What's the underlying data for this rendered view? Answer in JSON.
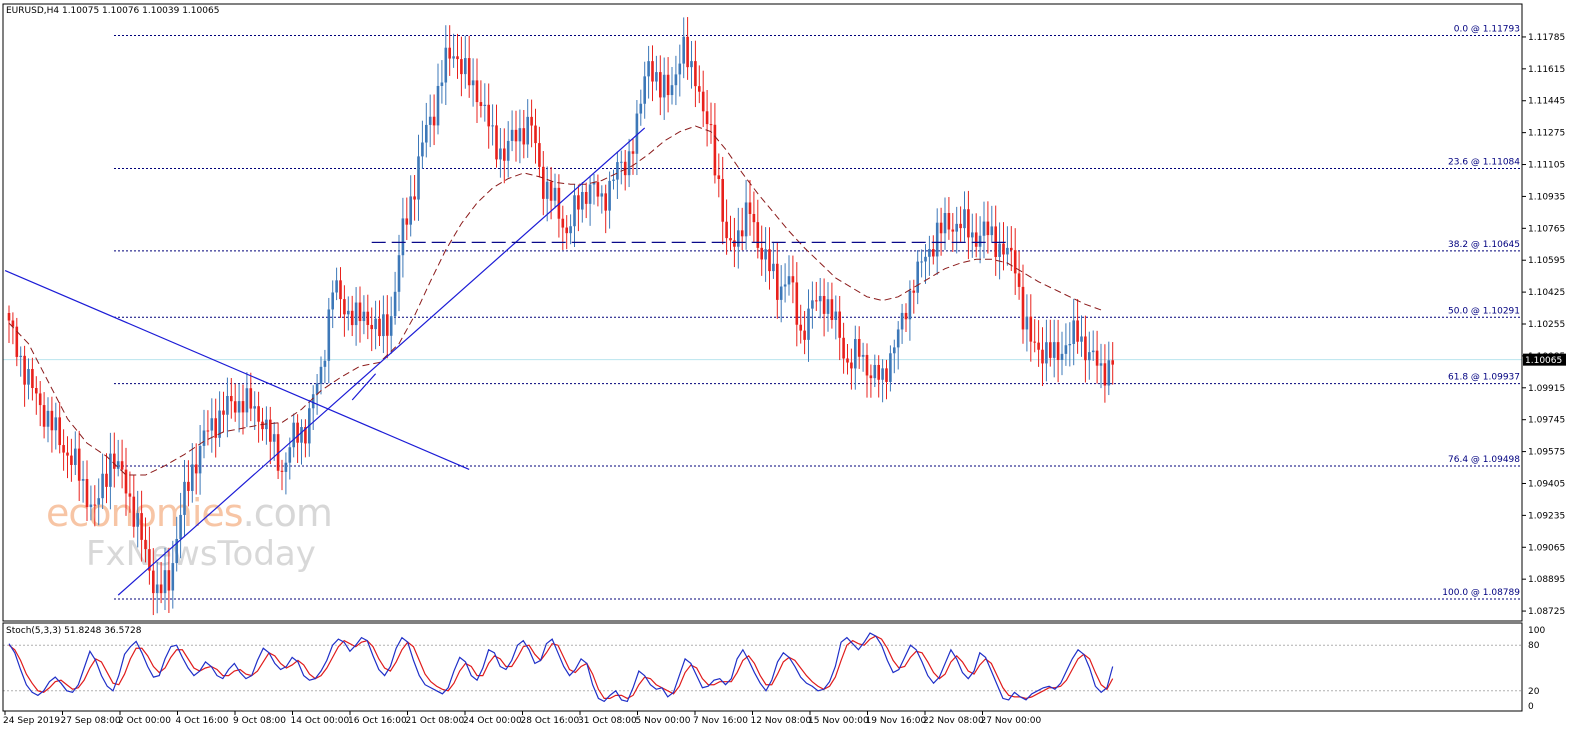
{
  "header": {
    "symbol_info": "EURUSD,H4  1.10075 1.10076 1.10039 1.10065",
    "stoch_info": "Stoch(5,3,3) 51.8248 36.5728"
  },
  "watermark": {
    "part1": "economies",
    "part2": ".com",
    "line2": "FxNewsToday"
  },
  "colors": {
    "bull": "#3d78b8",
    "bear": "#e8211c",
    "ma": "#8b1a1a",
    "fib": "#00007a",
    "trend": "#1c1cd6",
    "stoch_main": "#2030c8",
    "stoch_signal": "#e01c1c",
    "price_line": "#b9e4ee"
  },
  "chart_data": [
    {
      "type": "candlestick",
      "title": "EURUSD,H4",
      "ylim": [
        1.0872,
        1.1187
      ],
      "grid": false,
      "price_ticks": [
        "1.11785",
        "1.11615",
        "1.11445",
        "1.11275",
        "1.11105",
        "1.10935",
        "1.10765",
        "1.10595",
        "1.10425",
        "1.10255",
        "1.10085",
        "1.09915",
        "1.09745",
        "1.09575",
        "1.09405",
        "1.09235",
        "1.09065",
        "1.08895",
        "1.08725"
      ],
      "x_labels": [
        "24 Sep 2019",
        "27 Sep 08:00",
        "2 Oct 00:00",
        "4 Oct 16:00",
        "9 Oct 08:00",
        "14 Oct 00:00",
        "16 Oct 16:00",
        "21 Oct 08:00",
        "24 Oct 00:00",
        "28 Oct 16:00",
        "31 Oct 08:00",
        "5 Nov 00:00",
        "7 Nov 16:00",
        "12 Nov 08:00",
        "15 Nov 00:00",
        "19 Nov 16:00",
        "22 Nov 08:00",
        "27 Nov 00:00"
      ],
      "current_price": "1.10065",
      "fib_levels": [
        {
          "label": "0.0 @ 1.11793",
          "value": 1.11793
        },
        {
          "label": "23.6 @ 1.11084",
          "value": 1.11084
        },
        {
          "label": "38.2 @ 1.10645",
          "value": 1.10645
        },
        {
          "label": "50.0 @ 1.10291",
          "value": 1.10291
        },
        {
          "label": "61.8 @ 1.09937",
          "value": 1.09937
        },
        {
          "label": "76.4 @ 1.09498",
          "value": 1.09498
        },
        {
          "label": "100.0 @ 1.08789",
          "value": 1.08789
        }
      ],
      "anchors": [
        [
          0,
          1.1024
        ],
        [
          6,
          1.099
        ],
        [
          10,
          1.0975
        ],
        [
          14,
          1.096
        ],
        [
          17,
          1.095
        ],
        [
          22,
          1.0925
        ],
        [
          26,
          1.0955
        ],
        [
          30,
          1.094
        ],
        [
          34,
          1.091
        ],
        [
          38,
          1.0882
        ],
        [
          41,
          1.0888
        ],
        [
          44,
          1.0925
        ],
        [
          47,
          1.0948
        ],
        [
          50,
          1.0965
        ],
        [
          55,
          1.098
        ],
        [
          60,
          1.0985
        ],
        [
          65,
          1.0975
        ],
        [
          70,
          1.0948
        ],
        [
          73,
          1.0965
        ],
        [
          76,
          1.097
        ],
        [
          80,
          1.1
        ],
        [
          83,
          1.1045
        ],
        [
          86,
          1.1035
        ],
        [
          89,
          1.1028
        ],
        [
          92,
          1.103
        ],
        [
          95,
          1.102
        ],
        [
          98,
          1.103
        ],
        [
          101,
          1.1075
        ],
        [
          104,
          1.11
        ],
        [
          107,
          1.113
        ],
        [
          109,
          1.114
        ],
        [
          112,
          1.1165
        ],
        [
          114,
          1.1172
        ],
        [
          117,
          1.1158
        ],
        [
          120,
          1.115
        ],
        [
          124,
          1.1125
        ],
        [
          127,
          1.1115
        ],
        [
          130,
          1.1128
        ],
        [
          134,
          1.113
        ],
        [
          137,
          1.11
        ],
        [
          140,
          1.109
        ],
        [
          143,
          1.1075
        ],
        [
          146,
          1.109
        ],
        [
          149,
          1.11
        ],
        [
          152,
          1.109
        ],
        [
          155,
          1.1105
        ],
        [
          158,
          1.111
        ],
        [
          161,
          1.113
        ],
        [
          164,
          1.1168
        ],
        [
          167,
          1.1148
        ],
        [
          170,
          1.1155
        ],
        [
          173,
          1.117
        ],
        [
          176,
          1.116
        ],
        [
          178,
          1.1135
        ],
        [
          180,
          1.1128
        ],
        [
          182,
          1.11
        ],
        [
          184,
          1.1065
        ],
        [
          187,
          1.1075
        ],
        [
          190,
          1.1085
        ],
        [
          192,
          1.107
        ],
        [
          194,
          1.106
        ],
        [
          197,
          1.1045
        ],
        [
          200,
          1.105
        ],
        [
          203,
          1.102
        ],
        [
          206,
          1.1035
        ],
        [
          209,
          1.104
        ],
        [
          212,
          1.1025
        ],
        [
          215,
          1.1005
        ],
        [
          218,
          1.101
        ],
        [
          221,
          1.1
        ],
        [
          224,
          1.0995
        ],
        [
          226,
          1.101
        ],
        [
          229,
          1.1025
        ],
        [
          232,
          1.105
        ],
        [
          235,
          1.106
        ],
        [
          238,
          1.1075
        ],
        [
          241,
          1.1078
        ],
        [
          244,
          1.108
        ],
        [
          247,
          1.1072
        ],
        [
          250,
          1.1075
        ],
        [
          253,
          1.107
        ],
        [
          256,
          1.1062
        ],
        [
          258,
          1.1058
        ],
        [
          260,
          1.103
        ],
        [
          262,
          1.1015
        ],
        [
          265,
          1.1012
        ],
        [
          268,
          1.1008
        ],
        [
          271,
          1.1015
        ],
        [
          274,
          1.102
        ],
        [
          277,
          1.101
        ],
        [
          280,
          1.1
        ],
        [
          283,
          1.1006
        ]
      ],
      "series": [
        {
          "name": "MA",
          "points": [
            [
              0,
              1.1026
            ],
            [
              5,
              1.1015
            ],
            [
              10,
              1.0995
            ],
            [
              15,
              1.0975
            ],
            [
              20,
              1.0962
            ],
            [
              25,
              1.0955
            ],
            [
              30,
              1.0945
            ],
            [
              35,
              1.0945
            ],
            [
              40,
              1.095
            ],
            [
              45,
              1.0956
            ],
            [
              50,
              1.0963
            ],
            [
              55,
              1.0968
            ],
            [
              60,
              1.097
            ],
            [
              65,
              1.0972
            ],
            [
              70,
              1.0973
            ],
            [
              75,
              1.098
            ],
            [
              80,
              1.099
            ],
            [
              85,
              1.0997
            ],
            [
              90,
              1.1003
            ],
            [
              95,
              1.1005
            ],
            [
              100,
              1.1015
            ],
            [
              104,
              1.103
            ],
            [
              108,
              1.1048
            ],
            [
              112,
              1.1065
            ],
            [
              116,
              1.1079
            ],
            [
              120,
              1.109
            ],
            [
              124,
              1.1098
            ],
            [
              128,
              1.1103
            ],
            [
              132,
              1.1106
            ],
            [
              136,
              1.1104
            ],
            [
              140,
              1.1101
            ],
            [
              144,
              1.11
            ],
            [
              148,
              1.11
            ],
            [
              152,
              1.1102
            ],
            [
              156,
              1.1106
            ],
            [
              160,
              1.111
            ],
            [
              164,
              1.1116
            ],
            [
              168,
              1.1123
            ],
            [
              172,
              1.1128
            ],
            [
              176,
              1.1131
            ],
            [
              180,
              1.1128
            ],
            [
              184,
              1.1118
            ],
            [
              188,
              1.1106
            ],
            [
              192,
              1.1095
            ],
            [
              196,
              1.1085
            ],
            [
              200,
              1.1075
            ],
            [
              204,
              1.1066
            ],
            [
              208,
              1.1058
            ],
            [
              212,
              1.105
            ],
            [
              216,
              1.1045
            ],
            [
              220,
              1.104
            ],
            [
              224,
              1.1038
            ],
            [
              228,
              1.104
            ],
            [
              232,
              1.1045
            ],
            [
              236,
              1.105
            ],
            [
              240,
              1.1055
            ],
            [
              244,
              1.1058
            ],
            [
              248,
              1.106
            ],
            [
              252,
              1.106
            ],
            [
              256,
              1.1058
            ],
            [
              260,
              1.1053
            ],
            [
              264,
              1.1048
            ],
            [
              268,
              1.1044
            ],
            [
              272,
              1.104
            ],
            [
              276,
              1.1036
            ],
            [
              280,
              1.1033
            ]
          ]
        }
      ],
      "trendlines": [
        {
          "from": [
            -1,
            1.1054
          ],
          "to": [
            118,
            1.0948
          ]
        },
        {
          "from": [
            28,
            1.0881
          ],
          "to": [
            163,
            1.113
          ]
        },
        {
          "from": [
            94,
            1.0999
          ],
          "to": [
            88,
            1.0985
          ]
        }
      ],
      "support_line": {
        "from": [
          93,
          1.1069
        ],
        "to": [
          256,
          1.1069
        ]
      }
    },
    {
      "type": "line",
      "title": "Stoch(5,3,3)",
      "ylim": [
        0,
        100
      ],
      "levels": [
        20,
        80
      ],
      "ticks": [
        "100",
        "80",
        "20",
        "0"
      ],
      "series": [
        {
          "name": "main",
          "values": [
            82,
            70,
            48,
            28,
            18,
            14,
            20,
            32,
            38,
            30,
            20,
            18,
            28,
            50,
            72,
            60,
            40,
            26,
            20,
            40,
            68,
            78,
            85,
            70,
            52,
            38,
            40,
            62,
            78,
            80,
            64,
            50,
            40,
            46,
            58,
            52,
            40,
            36,
            48,
            56,
            44,
            36,
            40,
            60,
            76,
            70,
            56,
            48,
            52,
            64,
            58,
            40,
            34,
            36,
            46,
            60,
            80,
            88,
            84,
            72,
            80,
            90,
            86,
            66,
            48,
            40,
            52,
            76,
            90,
            84,
            60,
            40,
            28,
            24,
            20,
            16,
            24,
            46,
            64,
            58,
            40,
            34,
            50,
            74,
            70,
            52,
            48,
            60,
            80,
            86,
            74,
            56,
            60,
            82,
            88,
            70,
            52,
            40,
            48,
            62,
            56,
            28,
            10,
            6,
            14,
            20,
            8,
            6,
            24,
            46,
            40,
            28,
            22,
            24,
            12,
            18,
            40,
            62,
            56,
            40,
            24,
            26,
            34,
            36,
            28,
            36,
            62,
            74,
            60,
            44,
            30,
            20,
            34,
            58,
            70,
            64,
            52,
            38,
            30,
            26,
            20,
            22,
            32,
            52,
            84,
            90,
            82,
            74,
            84,
            96,
            92,
            80,
            60,
            44,
            48,
            64,
            80,
            74,
            58,
            40,
            30,
            38,
            56,
            74,
            62,
            44,
            36,
            46,
            70,
            64,
            46,
            28,
            10,
            8,
            18,
            12,
            8,
            16,
            20,
            24,
            26,
            22,
            30,
            46,
            62,
            74,
            68,
            50,
            26,
            18,
            24,
            52
          ]
        },
        {
          "name": "signal",
          "values": [
            80,
            74,
            60,
            42,
            30,
            20,
            18,
            24,
            32,
            34,
            28,
            22,
            24,
            34,
            50,
            62,
            58,
            44,
            30,
            28,
            42,
            62,
            76,
            76,
            66,
            52,
            44,
            50,
            64,
            74,
            74,
            62,
            50,
            46,
            50,
            52,
            48,
            40,
            40,
            46,
            48,
            42,
            40,
            46,
            58,
            70,
            66,
            56,
            50,
            54,
            60,
            54,
            42,
            36,
            40,
            50,
            64,
            78,
            86,
            82,
            78,
            84,
            86,
            78,
            62,
            50,
            46,
            58,
            74,
            84,
            78,
            60,
            42,
            32,
            26,
            22,
            20,
            30,
            46,
            56,
            52,
            40,
            40,
            56,
            66,
            62,
            52,
            52,
            64,
            78,
            80,
            68,
            60,
            70,
            82,
            80,
            64,
            48,
            44,
            52,
            56,
            42,
            22,
            10,
            10,
            14,
            14,
            10,
            14,
            28,
            38,
            36,
            28,
            24,
            20,
            16,
            26,
            44,
            54,
            50,
            36,
            28,
            28,
            32,
            32,
            32,
            44,
            60,
            66,
            56,
            40,
            28,
            28,
            42,
            58,
            64,
            60,
            50,
            40,
            32,
            26,
            22,
            26,
            38,
            60,
            80,
            86,
            82,
            80,
            88,
            92,
            88,
            76,
            60,
            50,
            52,
            64,
            72,
            70,
            58,
            44,
            36,
            42,
            58,
            66,
            58,
            46,
            42,
            54,
            62,
            56,
            40,
            24,
            14,
            12,
            12,
            10,
            12,
            16,
            20,
            24,
            24,
            26,
            34,
            48,
            62,
            68,
            62,
            44,
            28,
            22,
            36
          ]
        }
      ]
    }
  ]
}
